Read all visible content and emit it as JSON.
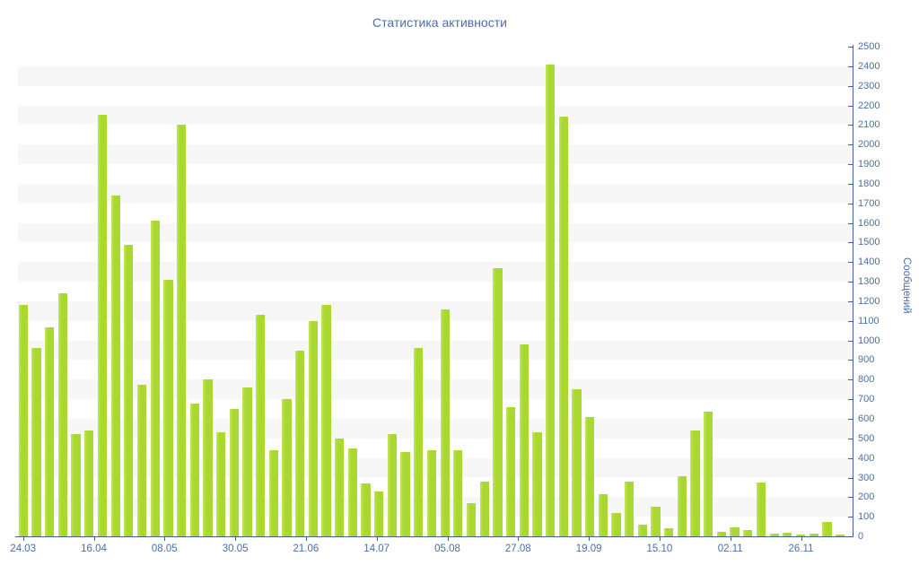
{
  "title": "Статистика активности",
  "y_axis": {
    "label": "Сообщений",
    "min": 0,
    "max": 2500,
    "step": 100
  },
  "x_axis": {
    "tick_labels": [
      "24.03",
      "16.04",
      "08.05",
      "30.05",
      "21.06",
      "14.07",
      "05.08",
      "27.08",
      "19.09",
      "15.10",
      "02.11",
      "26.11"
    ]
  },
  "colors": {
    "bar": "#a9d831",
    "bar_light": "#c3e55c",
    "stripe": "#f7f7f7",
    "axis": "#44618f",
    "text": "#4a6fa8"
  },
  "chart_data": {
    "type": "bar",
    "title": "Статистика активности",
    "xlabel": "",
    "ylabel": "Сообщений",
    "ylim": [
      0,
      2500
    ],
    "grid": "alternating horizontal stripes every 100 units",
    "legend": "none",
    "x_tick_labels": [
      "24.03",
      "16.04",
      "08.05",
      "30.05",
      "21.06",
      "14.07",
      "05.08",
      "27.08",
      "19.09",
      "15.10",
      "02.11",
      "26.11"
    ],
    "values": [
      1180,
      960,
      1065,
      1240,
      520,
      540,
      2150,
      1740,
      1490,
      775,
      1610,
      1310,
      2100,
      680,
      800,
      530,
      650,
      760,
      1130,
      440,
      700,
      950,
      1100,
      1180,
      500,
      450,
      270,
      230,
      520,
      430,
      960,
      440,
      1160,
      440,
      170,
      280,
      1370,
      660,
      980,
      530,
      2410,
      2145,
      750,
      610,
      215,
      120,
      280,
      60,
      150,
      40,
      305,
      540,
      635,
      25,
      45,
      30,
      275,
      15,
      20,
      10,
      15,
      75,
      10
    ]
  }
}
